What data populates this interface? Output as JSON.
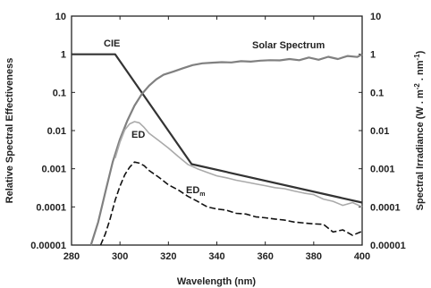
{
  "chart_data": {
    "type": "line",
    "xlabel": "Wavelength (nm)",
    "ylabel_left": "Relative Spectral Effectiveness",
    "ylabel_right": "Spectral Irradiance (W . m",
    "ylabel_right_sup1": "-2",
    "ylabel_right_mid": " . nm",
    "ylabel_right_sup2": "-1",
    "ylabel_right_end": ")",
    "xlim": [
      280,
      400
    ],
    "ylim": [
      1e-05,
      10
    ],
    "yscale": "log",
    "grid": false,
    "x_ticks": [
      280,
      300,
      320,
      340,
      360,
      380,
      400
    ],
    "y_ticks": [
      "10",
      "1",
      "0.1",
      "0.01",
      "0.001",
      "0.0001",
      "0.00001"
    ],
    "y_tick_values": [
      10,
      1,
      0.1,
      0.01,
      0.001,
      0.0001,
      1e-05
    ],
    "annotations": {
      "cie": "CIE",
      "solar": "Solar Spectrum",
      "ed": "ED",
      "edm_main": "ED",
      "edm_sub": "m"
    },
    "series": [
      {
        "name": "CIE",
        "color": "#333333",
        "style": "solid",
        "x": [
          280,
          298,
          329.6,
          400
        ],
        "y": [
          1,
          1,
          0.00132,
          0.00013
        ]
      },
      {
        "name": "Solar Spectrum",
        "color": "#808080",
        "style": "solid",
        "x": [
          288,
          291,
          294,
          297,
          300,
          303,
          306,
          309,
          312,
          315,
          318,
          322,
          326,
          330,
          334,
          338,
          342,
          346,
          350,
          354,
          358,
          362,
          366,
          370,
          374,
          378,
          382,
          386,
          390,
          394,
          398,
          400
        ],
        "y": [
          1e-05,
          4e-05,
          0.00025,
          0.0015,
          0.006,
          0.018,
          0.045,
          0.09,
          0.15,
          0.22,
          0.29,
          0.35,
          0.43,
          0.52,
          0.58,
          0.6,
          0.62,
          0.61,
          0.66,
          0.64,
          0.68,
          0.7,
          0.69,
          0.75,
          0.7,
          0.82,
          0.72,
          0.86,
          0.75,
          0.9,
          0.85,
          1.0
        ]
      },
      {
        "name": "ED",
        "color": "#aaaaaa",
        "style": "solid",
        "x": [
          298,
          300,
          302,
          304,
          306,
          308,
          310,
          312,
          316,
          320,
          324,
          328,
          332,
          336,
          340,
          344,
          348,
          352,
          356,
          360,
          364,
          368,
          372,
          376,
          380,
          384,
          388,
          392,
          396,
          400
        ],
        "y": [
          0.0019,
          0.005,
          0.0105,
          0.015,
          0.0172,
          0.016,
          0.012,
          0.0085,
          0.0055,
          0.0035,
          0.0021,
          0.0013,
          0.001,
          0.0008,
          0.00065,
          0.00058,
          0.0005,
          0.00045,
          0.0004,
          0.00036,
          0.00032,
          0.0003,
          0.00026,
          0.00023,
          0.00021,
          0.00016,
          0.00014,
          0.00011,
          0.00013,
          0.0001
        ]
      },
      {
        "name": "EDm",
        "color": "#111111",
        "style": "dashed",
        "x": [
          292,
          294,
          296,
          298,
          300,
          302,
          304,
          306,
          308,
          310,
          312,
          316,
          320,
          324,
          328,
          332,
          336,
          340,
          344,
          348,
          352,
          356,
          360,
          364,
          368,
          372,
          376,
          380,
          384,
          388,
          392,
          396,
          400
        ],
        "y": [
          1e-05,
          2e-05,
          5e-05,
          0.00015,
          0.00035,
          0.0007,
          0.0011,
          0.0015,
          0.0014,
          0.0012,
          0.0009,
          0.0006,
          0.00038,
          0.00028,
          0.00019,
          0.00014,
          0.0001,
          8.8e-05,
          8.2e-05,
          6.8e-05,
          6.5e-05,
          5.5e-05,
          5.2e-05,
          4.8e-05,
          4.5e-05,
          4e-05,
          3.8e-05,
          3.6e-05,
          3.5e-05,
          2.2e-05,
          2.5e-05,
          1.8e-05,
          2.3e-05
        ]
      }
    ]
  }
}
